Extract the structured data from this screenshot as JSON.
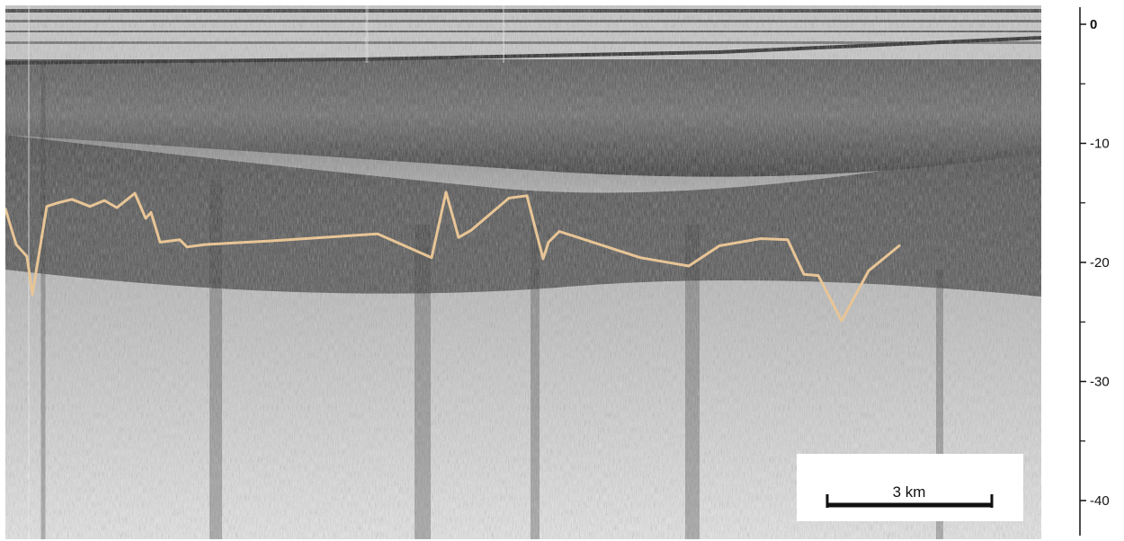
{
  "depth_axis": {
    "unit": "",
    "ticks": [
      {
        "value": 0,
        "label": "0"
      },
      {
        "value": -10,
        "label": "-10"
      },
      {
        "value": -20,
        "label": "-20"
      },
      {
        "value": -30,
        "label": "-30"
      },
      {
        "value": -40,
        "label": "-40"
      }
    ]
  },
  "scale_bar": {
    "label": "3 km",
    "length_km": 3
  },
  "colors": {
    "horizon_line": "#e8c596",
    "ink": "#111111",
    "water": "#6f6f6f",
    "dark_layer": "#1e1e1e",
    "light_sediment": "#e6e6e6"
  },
  "horizon_trace_depths": [
    -15.5,
    -18.5,
    -19.5,
    -22.7,
    -15.3,
    -15.0,
    -14.7,
    -15.3,
    -14.8,
    -15.4,
    -14.2,
    -16.3,
    -15.8,
    -18.3,
    -18.1,
    -18.7,
    -18.5,
    -18.2,
    -17.6,
    -19.6,
    -14.1,
    -17.9,
    -17.3,
    -14.6,
    -14.4,
    -19.7,
    -18.3,
    -17.4,
    -19.6,
    -20.3,
    -18.6,
    -18.0,
    -18.1,
    -21.0,
    -21.1,
    -24.9,
    -20.7,
    -18.6
  ]
}
